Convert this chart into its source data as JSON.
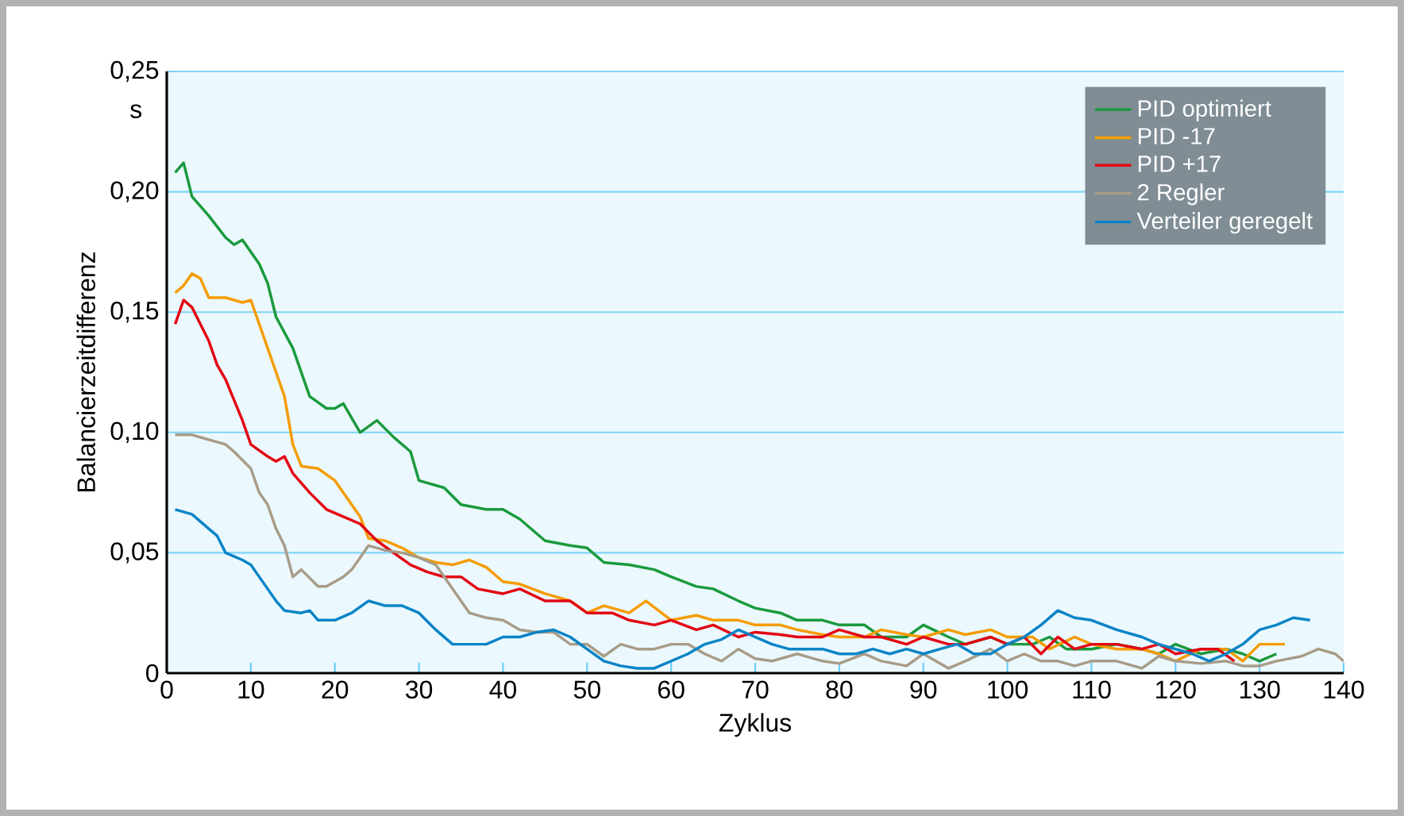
{
  "chart_data": {
    "type": "line",
    "xlabel": "Zyklus",
    "ylabel": "Balancierzeitdifferenz",
    "annotations": [
      "s"
    ],
    "xlim": [
      0,
      140
    ],
    "xticks": [
      0,
      10,
      20,
      30,
      40,
      50,
      60,
      70,
      80,
      90,
      100,
      110,
      120,
      130,
      140
    ],
    "ylim": [
      0,
      0.25
    ],
    "yticks": [
      0,
      {
        "value": 0.05,
        "label": "0,05"
      },
      {
        "value": 0.1,
        "label": "0,10"
      },
      {
        "value": 0.15,
        "label": "0,15"
      },
      {
        "value": 0.2,
        "label": "0,20"
      },
      {
        "value": 0.25,
        "label": "0,25"
      }
    ],
    "grid": "y",
    "legend": "top right",
    "line_style": "solid",
    "series": [
      {
        "name": "PID optimiert",
        "color": "#1a9a3c",
        "x": [
          1,
          2,
          3,
          5,
          7,
          8,
          9,
          11,
          12,
          13,
          15,
          17,
          19,
          20,
          21,
          23,
          25,
          27,
          29,
          30,
          33,
          35,
          38,
          40,
          42,
          45,
          48,
          50,
          52,
          55,
          58,
          60,
          63,
          65,
          68,
          70,
          73,
          75,
          78,
          80,
          83,
          85,
          88,
          90,
          93,
          95,
          98,
          100,
          103,
          105,
          107,
          110,
          113,
          116,
          118,
          120,
          123,
          126,
          128,
          130,
          132
        ],
        "values": [
          0.208,
          0.212,
          0.198,
          0.19,
          0.181,
          0.178,
          0.18,
          0.17,
          0.162,
          0.148,
          0.135,
          0.115,
          0.11,
          0.11,
          0.112,
          0.1,
          0.105,
          0.098,
          0.092,
          0.08,
          0.077,
          0.07,
          0.068,
          0.068,
          0.064,
          0.055,
          0.053,
          0.052,
          0.046,
          0.045,
          0.043,
          0.04,
          0.036,
          0.035,
          0.03,
          0.027,
          0.025,
          0.022,
          0.022,
          0.02,
          0.02,
          0.015,
          0.015,
          0.02,
          0.015,
          0.012,
          0.015,
          0.012,
          0.012,
          0.015,
          0.01,
          0.01,
          0.012,
          0.01,
          0.008,
          0.012,
          0.008,
          0.01,
          0.008,
          0.005,
          0.008
        ]
      },
      {
        "name": "PID -17",
        "color": "#f59c00",
        "x": [
          1,
          2,
          3,
          4,
          5,
          7,
          8,
          9,
          10,
          12,
          13,
          14,
          15,
          16,
          18,
          20,
          22,
          23,
          24,
          26,
          28,
          30,
          32,
          34,
          36,
          38,
          40,
          42,
          45,
          48,
          50,
          52,
          55,
          57,
          60,
          63,
          65,
          68,
          70,
          73,
          75,
          78,
          80,
          83,
          85,
          88,
          90,
          93,
          95,
          98,
          100,
          103,
          105,
          108,
          110,
          113,
          116,
          118,
          120,
          123,
          126,
          128,
          130,
          133
        ],
        "values": [
          0.158,
          0.161,
          0.166,
          0.164,
          0.156,
          0.156,
          0.155,
          0.154,
          0.155,
          0.135,
          0.125,
          0.115,
          0.095,
          0.086,
          0.085,
          0.08,
          0.07,
          0.065,
          0.056,
          0.055,
          0.052,
          0.048,
          0.046,
          0.045,
          0.047,
          0.044,
          0.038,
          0.037,
          0.033,
          0.03,
          0.025,
          0.028,
          0.025,
          0.03,
          0.022,
          0.024,
          0.022,
          0.022,
          0.02,
          0.02,
          0.018,
          0.016,
          0.015,
          0.015,
          0.018,
          0.016,
          0.015,
          0.018,
          0.016,
          0.018,
          0.015,
          0.015,
          0.01,
          0.015,
          0.012,
          0.01,
          0.01,
          0.008,
          0.005,
          0.01,
          0.01,
          0.005,
          0.012,
          0.012
        ]
      },
      {
        "name": "PID +17",
        "color": "#e30613",
        "x": [
          1,
          2,
          3,
          5,
          6,
          7,
          9,
          10,
          12,
          13,
          14,
          15,
          17,
          19,
          21,
          23,
          25,
          27,
          29,
          31,
          33,
          35,
          37,
          40,
          42,
          45,
          48,
          50,
          53,
          55,
          58,
          60,
          63,
          65,
          68,
          70,
          73,
          75,
          78,
          80,
          83,
          85,
          88,
          90,
          93,
          95,
          98,
          100,
          102,
          104,
          106,
          108,
          110,
          113,
          116,
          118,
          120,
          123,
          125,
          127
        ],
        "values": [
          0.145,
          0.155,
          0.152,
          0.138,
          0.128,
          0.122,
          0.105,
          0.095,
          0.09,
          0.088,
          0.09,
          0.083,
          0.075,
          0.068,
          0.065,
          0.062,
          0.055,
          0.05,
          0.045,
          0.042,
          0.04,
          0.04,
          0.035,
          0.033,
          0.035,
          0.03,
          0.03,
          0.025,
          0.025,
          0.022,
          0.02,
          0.022,
          0.018,
          0.02,
          0.015,
          0.017,
          0.016,
          0.015,
          0.015,
          0.018,
          0.015,
          0.015,
          0.012,
          0.015,
          0.012,
          0.012,
          0.015,
          0.012,
          0.015,
          0.008,
          0.015,
          0.01,
          0.012,
          0.012,
          0.01,
          0.012,
          0.008,
          0.01,
          0.01,
          0.005
        ]
      },
      {
        "name": "2 Regler",
        "color": "#a89c88",
        "x": [
          1,
          3,
          5,
          7,
          8,
          10,
          11,
          12,
          13,
          14,
          15,
          16,
          18,
          19,
          21,
          22,
          23,
          24,
          26,
          28,
          30,
          32,
          34,
          36,
          38,
          40,
          42,
          44,
          46,
          48,
          50,
          52,
          54,
          56,
          58,
          60,
          62,
          64,
          66,
          68,
          70,
          72,
          75,
          78,
          80,
          83,
          85,
          88,
          90,
          93,
          95,
          98,
          100,
          102,
          104,
          106,
          108,
          110,
          113,
          116,
          118,
          120,
          123,
          126,
          128,
          130,
          132,
          135,
          137,
          139,
          140
        ],
        "values": [
          0.099,
          0.099,
          0.097,
          0.095,
          0.092,
          0.085,
          0.075,
          0.07,
          0.06,
          0.053,
          0.04,
          0.043,
          0.036,
          0.036,
          0.04,
          0.043,
          0.048,
          0.053,
          0.051,
          0.05,
          0.048,
          0.045,
          0.035,
          0.025,
          0.023,
          0.022,
          0.018,
          0.017,
          0.017,
          0.012,
          0.012,
          0.007,
          0.012,
          0.01,
          0.01,
          0.012,
          0.012,
          0.008,
          0.005,
          0.01,
          0.006,
          0.005,
          0.008,
          0.005,
          0.004,
          0.008,
          0.005,
          0.003,
          0.008,
          0.002,
          0.005,
          0.01,
          0.005,
          0.008,
          0.005,
          0.005,
          0.003,
          0.005,
          0.005,
          0.002,
          0.007,
          0.005,
          0.004,
          0.005,
          0.003,
          0.003,
          0.005,
          0.007,
          0.01,
          0.008,
          0.005
        ]
      },
      {
        "name": "Verteiler geregelt",
        "color": "#0a84c6",
        "x": [
          1,
          3,
          5,
          6,
          7,
          9,
          10,
          12,
          13,
          14,
          16,
          17,
          18,
          20,
          22,
          24,
          26,
          28,
          30,
          32,
          34,
          36,
          38,
          40,
          42,
          44,
          46,
          48,
          50,
          52,
          54,
          56,
          58,
          60,
          62,
          64,
          66,
          68,
          70,
          72,
          74,
          76,
          78,
          80,
          82,
          84,
          86,
          88,
          90,
          92,
          94,
          96,
          98,
          100,
          102,
          104,
          106,
          108,
          110,
          113,
          116,
          118,
          120,
          122,
          124,
          126,
          128,
          130,
          132,
          134,
          136
        ],
        "values": [
          0.068,
          0.066,
          0.06,
          0.057,
          0.05,
          0.047,
          0.045,
          0.035,
          0.03,
          0.026,
          0.025,
          0.026,
          0.022,
          0.022,
          0.025,
          0.03,
          0.028,
          0.028,
          0.025,
          0.018,
          0.012,
          0.012,
          0.012,
          0.015,
          0.015,
          0.017,
          0.018,
          0.015,
          0.01,
          0.005,
          0.003,
          0.002,
          0.002,
          0.005,
          0.008,
          0.012,
          0.014,
          0.018,
          0.015,
          0.012,
          0.01,
          0.01,
          0.01,
          0.008,
          0.008,
          0.01,
          0.008,
          0.01,
          0.008,
          0.01,
          0.012,
          0.008,
          0.008,
          0.012,
          0.015,
          0.02,
          0.026,
          0.023,
          0.022,
          0.018,
          0.015,
          0.012,
          0.01,
          0.008,
          0.005,
          0.008,
          0.012,
          0.018,
          0.02,
          0.023,
          0.022
        ]
      }
    ]
  }
}
